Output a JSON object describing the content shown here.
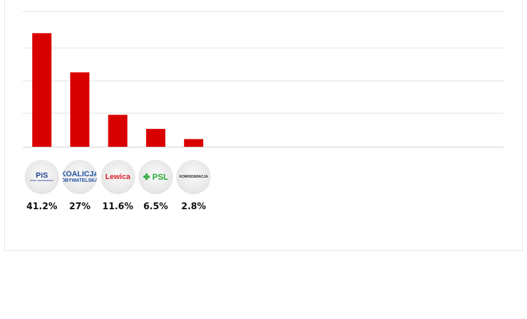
{
  "chart_data": {
    "type": "bar",
    "categories": [
      "PiS",
      "Koalicja Obywatelska",
      "Lewica",
      "PSL",
      "Konfederacja"
    ],
    "values": [
      41.2,
      27,
      11.6,
      6.5,
      2.8
    ],
    "data_labels": [
      "41.2%",
      "27%",
      "11.6%",
      "6.5%",
      "2.8%"
    ],
    "ylim": [
      0,
      49
    ],
    "grid": true,
    "bar_color": "#d90000",
    "logos": [
      {
        "text": "PiS",
        "sub": "Prawo i Sprawiedliwość",
        "color": "#1d3f8f"
      },
      {
        "text": "KOALICJA",
        "sub": "OBYWATELSKA",
        "color": "#1d4fa0"
      },
      {
        "text": "Lewica",
        "sub": "",
        "color": "#d6202a"
      },
      {
        "text": "PSL",
        "sub": "",
        "color": "#2aa83a"
      },
      {
        "text": "KONFEDERACJA",
        "sub": "",
        "color": "#222222"
      }
    ]
  }
}
